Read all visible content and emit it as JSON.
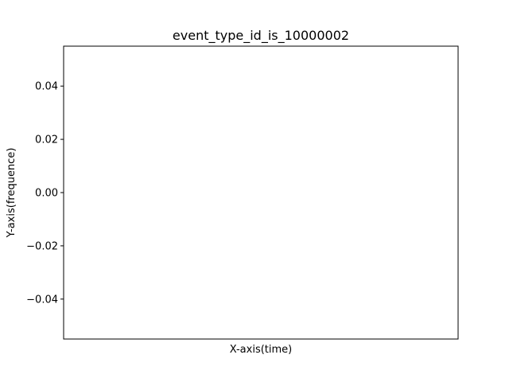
{
  "chart_data": {
    "type": "line",
    "title": "event_type_id_is_10000002",
    "xlabel": "X-axis(time)",
    "ylabel": "Y-axis(frequence)",
    "series": [],
    "x_ticks": [],
    "y_ticks": [
      0.04,
      0.02,
      0.0,
      -0.02,
      -0.04
    ],
    "y_tick_labels": [
      "0.04",
      "0.02",
      "0.00",
      "−0.02",
      "−0.04"
    ],
    "ylim": [
      -0.055,
      0.055
    ],
    "grid": false,
    "legend": "none"
  }
}
